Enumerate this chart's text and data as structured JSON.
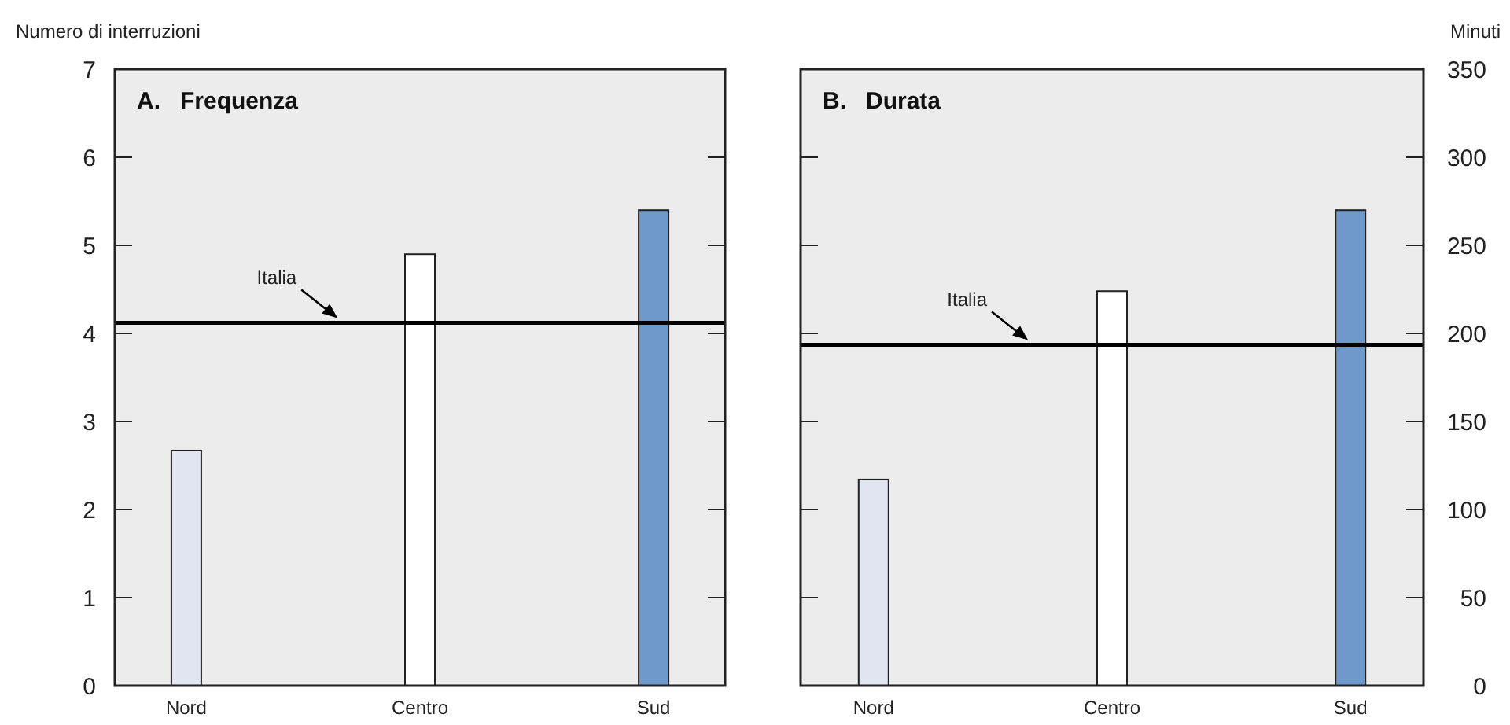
{
  "chart_data": [
    {
      "type": "bar",
      "title": "A.   Frequenza",
      "ylabel": "Numero di interruzioni",
      "categories": [
        "Nord",
        "Centro",
        "Sud"
      ],
      "series": [
        {
          "values": [
            2.67,
            4.9,
            5.4
          ],
          "colors": [
            "#e1e5f2",
            "#ffffff",
            "#6f98cb"
          ]
        }
      ],
      "ylim": [
        0,
        7
      ],
      "yticks": [
        0,
        1,
        2,
        3,
        4,
        5,
        6,
        7
      ],
      "ref_lines": [
        {
          "axis": "y",
          "value": 4.12,
          "label": "Italia",
          "color": "#000000"
        }
      ],
      "grid": false
    },
    {
      "type": "bar",
      "title": "B.   Durata",
      "y2label": "Minuti",
      "categories": [
        "Nord",
        "Centro",
        "Sud"
      ],
      "series": [
        {
          "values": [
            117,
            224,
            270
          ],
          "colors": [
            "#e1e5f2",
            "#ffffff",
            "#6f98cb"
          ],
          "axis": "y2"
        }
      ],
      "y2lim": [
        0,
        350
      ],
      "y2ticks": [
        0,
        50,
        100,
        150,
        200,
        250,
        300,
        350
      ],
      "ref_lines": [
        {
          "axis": "y2",
          "value": 193.5,
          "label": "Italia",
          "color": "#000000"
        }
      ],
      "grid": false
    }
  ]
}
